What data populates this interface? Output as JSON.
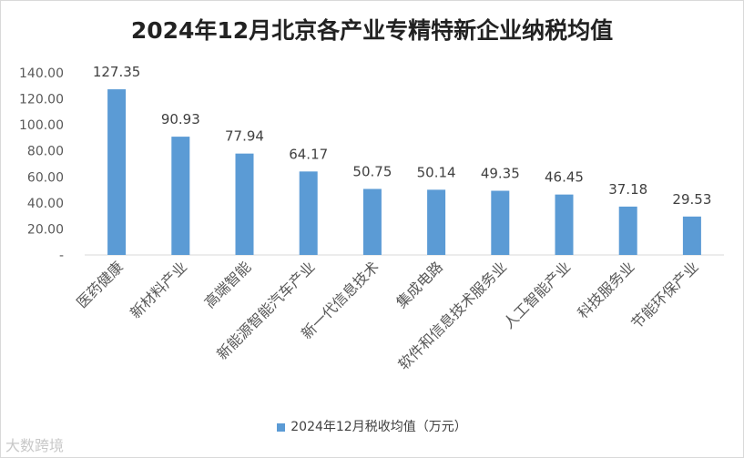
{
  "watermark": "大数跨境",
  "chart_data": {
    "type": "bar",
    "title": "2024年12月北京各产业专精特新企业纳税均值",
    "categories": [
      "医药健康",
      "新材料产业",
      "高端智能",
      "新能源智能汽车产业",
      "新一代信息技术",
      "集成电路",
      "软件和信息技术服务业",
      "人工智能产业",
      "科技服务业",
      "节能环保产业"
    ],
    "series": [
      {
        "name": "2024年12月税收均值（万元）",
        "values": [
          127.35,
          90.93,
          77.94,
          64.17,
          50.75,
          50.14,
          49.35,
          46.45,
          37.18,
          29.53
        ],
        "color": "#5b9bd5"
      }
    ],
    "data_labels": [
      "127.35",
      "90.93",
      "77.94",
      "64.17",
      "50.75",
      "50.14",
      "49.35",
      "46.45",
      "37.18",
      "29.53"
    ],
    "yticks": [
      "-",
      "20.00",
      "40.00",
      "60.00",
      "80.00",
      "100.00",
      "120.00",
      "140.00"
    ],
    "ylim": [
      0,
      140
    ],
    "xlabel": "",
    "ylabel": "",
    "grid": false,
    "legend_position": "bottom"
  }
}
